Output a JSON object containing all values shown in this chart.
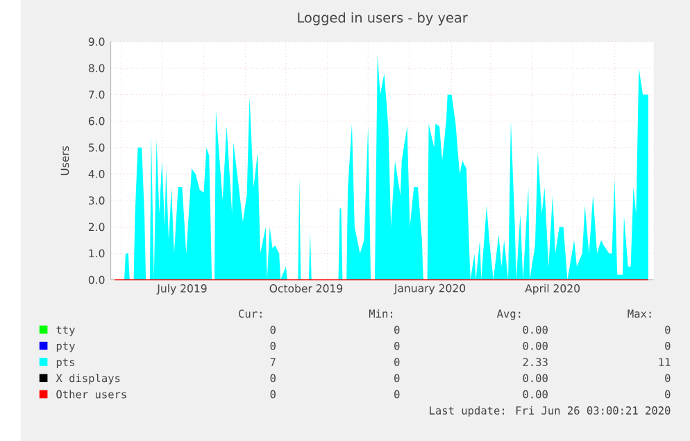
{
  "chart_data": {
    "type": "area",
    "title": "Logged in users - by year",
    "ylabel": "Users",
    "xlim": [
      "2019-05-24",
      "2020-06-30"
    ],
    "ylim": [
      0,
      9
    ],
    "xticks": [
      {
        "value": "2019-06-01",
        "label": null
      },
      {
        "value": "2019-07-01",
        "label": null
      },
      {
        "value": "2019-08-01",
        "label": null
      },
      {
        "value": "2019-09-01",
        "label": null
      },
      {
        "value": "2019-10-01",
        "label": null
      },
      {
        "value": "2019-11-01",
        "label": null
      },
      {
        "value": "2019-12-01",
        "label": null
      },
      {
        "value": "2020-01-01",
        "label": null
      },
      {
        "value": "2020-02-01",
        "label": null
      },
      {
        "value": "2020-03-01",
        "label": null
      },
      {
        "value": "2020-04-01",
        "label": null
      },
      {
        "value": "2020-05-01",
        "label": null
      },
      {
        "value": "2020-06-01",
        "label": null
      },
      {
        "value": "2019-07-16",
        "label": "July 2019"
      },
      {
        "value": "2019-10-16",
        "label": "October 2019"
      },
      {
        "value": "2020-01-16",
        "label": "January 2020"
      },
      {
        "value": "2020-04-16",
        "label": "April 2020"
      }
    ],
    "yticks": [
      {
        "value": 0,
        "label": "0.0"
      },
      {
        "value": 1,
        "label": "1.0"
      },
      {
        "value": 2,
        "label": "2.0"
      },
      {
        "value": 3,
        "label": "3.0"
      },
      {
        "value": 4,
        "label": "4.0"
      },
      {
        "value": 5,
        "label": "5.0"
      },
      {
        "value": 6,
        "label": "6.0"
      },
      {
        "value": 7,
        "label": "7.0"
      },
      {
        "value": 8,
        "label": "8.0"
      },
      {
        "value": 9,
        "label": "9.0"
      }
    ],
    "grid": true,
    "legend": "bottom",
    "series": [
      {
        "name": "tty",
        "color": "#00ff00"
      },
      {
        "name": "pty",
        "color": "#0000ff"
      },
      {
        "name": "pts",
        "color": "#00ffff",
        "x": [
          "2019-05-27",
          "2019-06-03",
          "2019-06-04",
          "2019-06-06",
          "2019-06-07",
          "2019-06-10",
          "2019-06-11",
          "2019-06-13",
          "2019-06-16",
          "2019-06-18",
          "2019-06-19",
          "2019-06-22",
          "2019-06-23",
          "2019-06-25",
          "2019-06-27",
          "2019-06-29",
          "2019-07-01",
          "2019-07-03",
          "2019-07-04",
          "2019-07-06",
          "2019-07-08",
          "2019-07-10",
          "2019-07-13",
          "2019-07-16",
          "2019-07-19",
          "2019-07-23",
          "2019-07-26",
          "2019-07-29",
          "2019-08-01",
          "2019-08-03",
          "2019-08-05",
          "2019-08-07",
          "2019-08-09",
          "2019-08-10",
          "2019-08-15",
          "2019-08-18",
          "2019-08-22",
          "2019-08-23",
          "2019-08-27",
          "2019-08-30",
          "2019-09-02",
          "2019-09-04",
          "2019-09-07",
          "2019-09-10",
          "2019-09-12",
          "2019-09-16",
          "2019-09-17",
          "2019-09-19",
          "2019-09-21",
          "2019-09-23",
          "2019-09-26",
          "2019-09-27",
          "2019-10-01",
          "2019-10-02",
          "2019-10-10",
          "2019-10-11",
          "2019-10-12",
          "2019-10-18",
          "2019-10-19",
          "2019-10-20",
          "2019-11-09",
          "2019-11-10",
          "2019-11-11",
          "2019-11-12",
          "2019-11-15",
          "2019-11-16",
          "2019-11-19",
          "2019-11-21",
          "2019-11-25",
          "2019-11-28",
          "2019-12-01",
          "2019-12-03",
          "2019-12-06",
          "2019-12-08",
          "2019-12-10",
          "2019-12-13",
          "2019-12-16",
          "2019-12-18",
          "2019-12-21",
          "2019-12-25",
          "2019-12-26",
          "2019-12-30",
          "2020-01-01",
          "2020-01-04",
          "2020-01-07",
          "2020-01-10",
          "2020-01-11",
          "2020-01-14",
          "2020-01-15",
          "2020-01-19",
          "2020-01-20",
          "2020-01-23",
          "2020-01-25",
          "2020-01-28",
          "2020-01-29",
          "2020-02-01",
          "2020-02-04",
          "2020-02-07",
          "2020-02-09",
          "2020-02-12",
          "2020-02-14",
          "2020-02-15",
          "2020-02-18",
          "2020-02-19",
          "2020-02-22",
          "2020-02-23",
          "2020-02-27",
          "2020-02-29",
          "2020-03-03",
          "2020-03-07",
          "2020-03-09",
          "2020-03-11",
          "2020-03-14",
          "2020-03-16",
          "2020-03-19",
          "2020-03-20",
          "2020-03-23",
          "2020-03-25",
          "2020-03-29",
          "2020-03-30",
          "2020-04-03",
          "2020-04-05",
          "2020-04-08",
          "2020-04-10",
          "2020-04-13",
          "2020-04-16",
          "2020-04-18",
          "2020-04-21",
          "2020-04-24",
          "2020-04-27",
          "2020-05-02",
          "2020-05-04",
          "2020-05-08",
          "2020-05-10",
          "2020-05-13",
          "2020-05-16",
          "2020-05-19",
          "2020-05-22",
          "2020-05-24",
          "2020-05-28",
          "2020-05-30",
          "2020-06-01",
          "2020-06-03",
          "2020-06-07",
          "2020-06-08",
          "2020-06-11",
          "2020-06-13",
          "2020-06-15",
          "2020-06-17",
          "2020-06-19",
          "2020-06-22",
          "2020-06-26"
        ],
        "values": [
          0,
          0,
          1.0,
          1.0,
          0,
          0,
          2.5,
          5.0,
          5.0,
          2.4,
          0,
          0,
          5.5,
          0,
          5.3,
          2.5,
          4.5,
          2.0,
          4.2,
          1.5,
          3.5,
          1.0,
          3.5,
          3.5,
          1.0,
          4.2,
          4.0,
          3.4,
          3.3,
          5.0,
          4.7,
          0,
          0,
          6.4,
          3.0,
          5.8,
          2.5,
          5.2,
          3.5,
          2.2,
          3.2,
          6.9,
          3.5,
          4.8,
          1.0,
          2.0,
          0,
          2.0,
          1.2,
          1.3,
          1.0,
          0,
          0.5,
          0,
          0,
          3.9,
          0,
          0,
          1.8,
          0,
          0,
          2.7,
          2.7,
          0,
          0,
          3.5,
          5.9,
          2.0,
          1.0,
          1.5,
          5.8,
          0,
          0,
          8.5,
          7.0,
          7.8,
          5.8,
          2.0,
          4.5,
          3.2,
          4.5,
          5.8,
          2.0,
          3.5,
          3.5,
          1.5,
          0,
          0,
          5.9,
          5.0,
          5.9,
          5.8,
          4.5,
          6.0,
          7.0,
          7.0,
          5.9,
          4.0,
          4.5,
          4.2,
          1.3,
          0,
          1.0,
          0,
          1.5,
          0,
          2.8,
          1.5,
          0,
          1.7,
          0.5,
          1.5,
          0,
          6.0,
          2.0,
          0,
          2.5,
          0,
          3.5,
          0,
          1.3,
          4.8,
          2.5,
          3.5,
          0.5,
          3.2,
          1.0,
          2.0,
          2.0,
          0,
          1.5,
          0.5,
          1.0,
          2.8,
          1.0,
          3.2,
          1.0,
          1.5,
          1.3,
          1.0,
          1.0,
          3.8,
          0.2,
          0.2,
          2.4,
          0.5,
          0.5,
          3.5,
          2.5,
          8.0,
          7.0,
          7.0
        ]
      },
      {
        "name": "X displays",
        "color": "#000000"
      },
      {
        "name": "Other users",
        "color": "#ff0000",
        "type": "line",
        "x": [
          "2019-05-27",
          "2020-06-26"
        ],
        "values": [
          0,
          0
        ]
      }
    ],
    "annotations": [
      "Cur:",
      "Min:",
      "Avg:",
      "Max:",
      "0",
      "0",
      "0.00",
      "0",
      "0",
      "0",
      "0.00",
      "0",
      "7",
      "0",
      "2.33",
      "11",
      "0",
      "0",
      "0.00",
      "0",
      "0",
      "0",
      "0.00",
      "0",
      "Last update: Fri Jun 26 03:00:21 2020"
    ]
  }
}
